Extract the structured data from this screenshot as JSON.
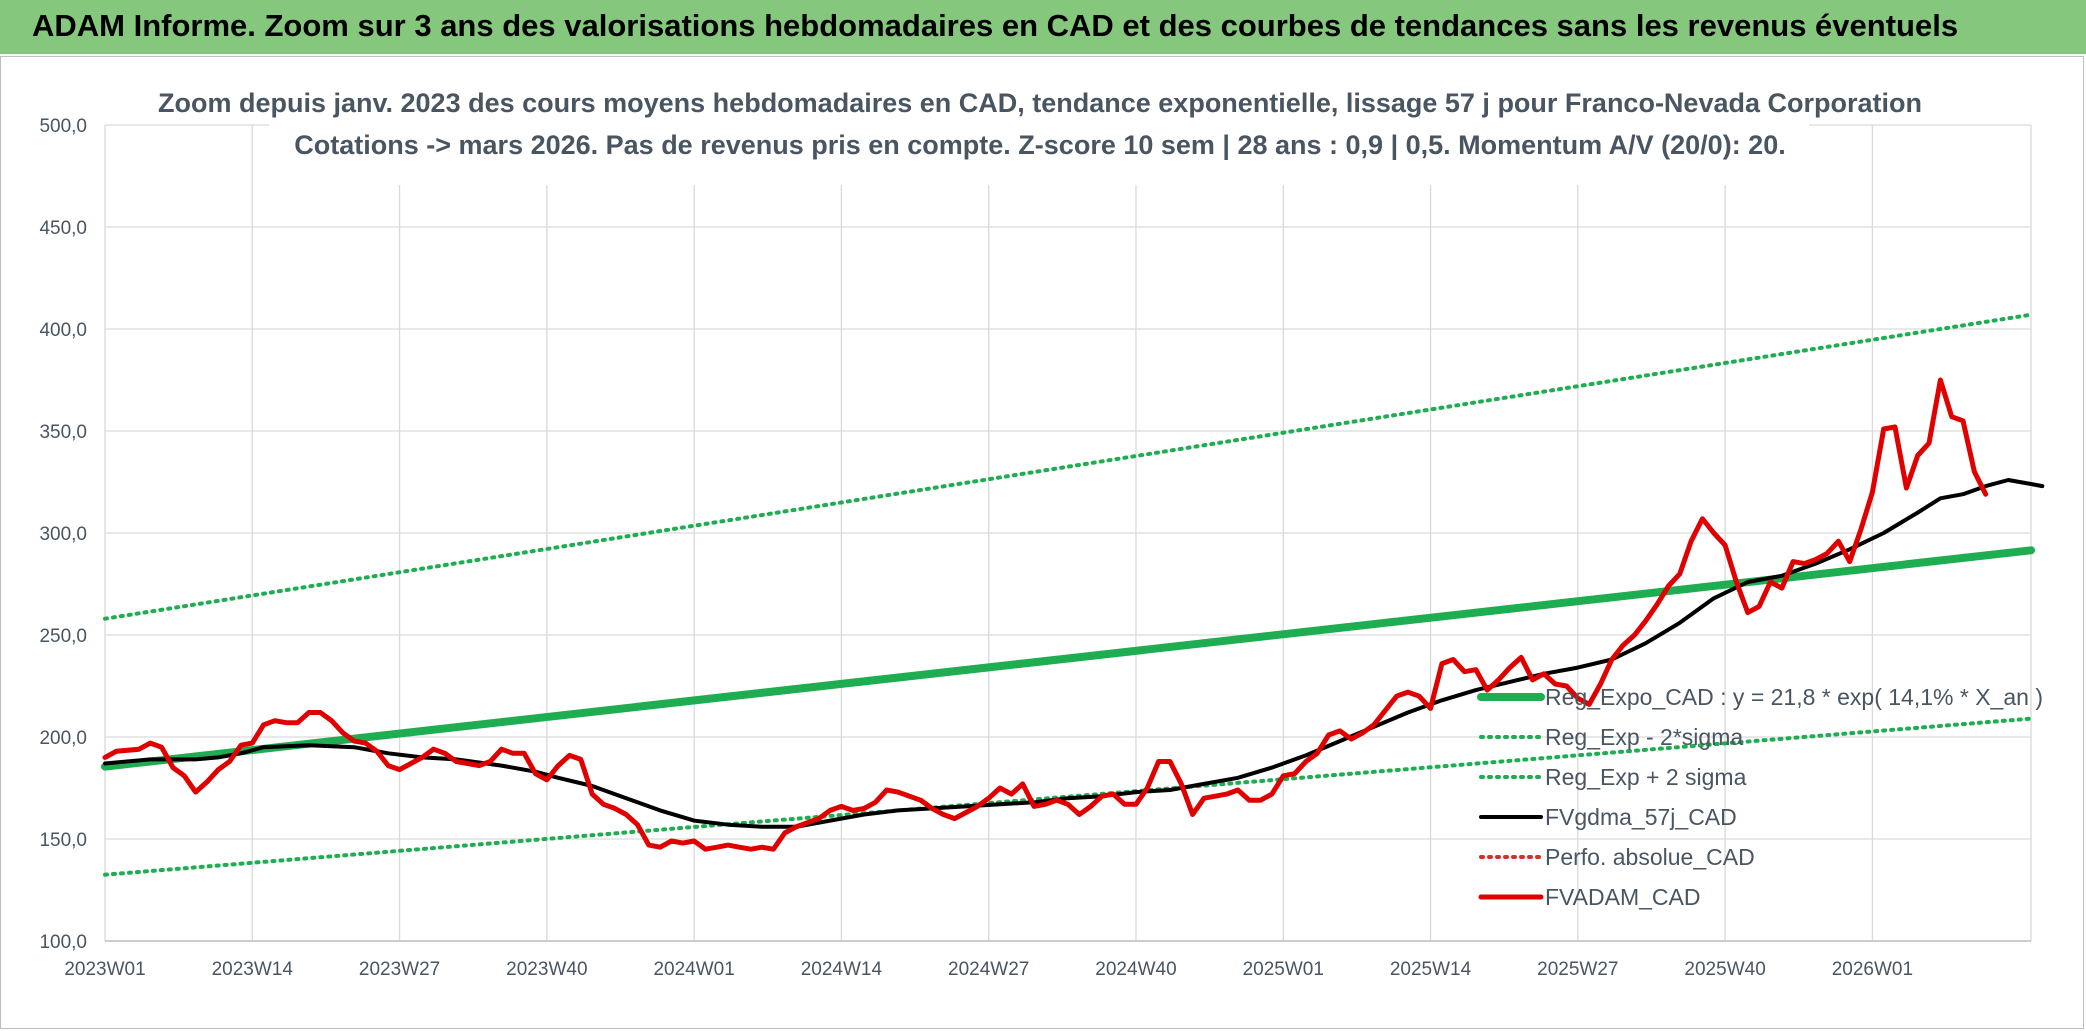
{
  "header": {
    "title": "ADAM Informe. Zoom sur 3 ans des valorisations hebdomadaires en CAD et des courbes de tendances sans les revenus éventuels"
  },
  "chart_data": {
    "type": "line",
    "title_lines": [
      "Zoom depuis janv. 2023 des cours moyens hebdomadaires en CAD, tendance exponentielle, lissage 57 j pour Franco-Nevada Corporation",
      "Cotations -> mars 2026. Pas de revenus pris en compte. Z-score 10 sem | 28 ans : 0,9 | 0,5. Momentum A/V (20/0): 20."
    ],
    "xlabel": "",
    "ylabel": "",
    "ylim": [
      100,
      500
    ],
    "y_ticks": [
      "100,0",
      "150,0",
      "200,0",
      "250,0",
      "300,0",
      "350,0",
      "400,0",
      "450,0",
      "500,0"
    ],
    "x_ticks": [
      {
        "week": 0,
        "label": "2023W01"
      },
      {
        "week": 13,
        "label": "2023W14"
      },
      {
        "week": 26,
        "label": "2023W27"
      },
      {
        "week": 39,
        "label": "2023W40"
      },
      {
        "week": 52,
        "label": "2024W01"
      },
      {
        "week": 65,
        "label": "2024W14"
      },
      {
        "week": 78,
        "label": "2024W27"
      },
      {
        "week": 91,
        "label": "2024W40"
      },
      {
        "week": 104,
        "label": "2025W01"
      },
      {
        "week": 117,
        "label": "2025W14"
      },
      {
        "week": 130,
        "label": "2025W27"
      },
      {
        "week": 143,
        "label": "2025W40"
      },
      {
        "week": 156,
        "label": "2026W01"
      }
    ],
    "week_range": [
      0,
      170
    ],
    "legend_position": "right",
    "grid": true,
    "series": [
      {
        "name": "Reg_Expo_CAD : y = 21,8 * exp( 14,1% *  X_an )",
        "color": "#1fad52",
        "style": "solid-thick",
        "points": [
          [
            0,
            185.5
          ],
          [
            170,
            291.5
          ]
        ]
      },
      {
        "name": "Reg_Exp - 2*sigma",
        "color": "#1fad52",
        "style": "dotted",
        "points": [
          [
            0,
            132.5
          ],
          [
            170,
            209
          ]
        ]
      },
      {
        "name": "Reg_Exp + 2 sigma",
        "color": "#1fad52",
        "style": "dotted",
        "points": [
          [
            0,
            258
          ],
          [
            170,
            407
          ]
        ]
      },
      {
        "name": "FVgdma_57j_CAD",
        "color": "#000000",
        "style": "solid",
        "points": [
          [
            0,
            187
          ],
          [
            4,
            189
          ],
          [
            8,
            189
          ],
          [
            10,
            190
          ],
          [
            12,
            192
          ],
          [
            14,
            195
          ],
          [
            18,
            196
          ],
          [
            22,
            195
          ],
          [
            25,
            192
          ],
          [
            28,
            190
          ],
          [
            31,
            189
          ],
          [
            35,
            186
          ],
          [
            38,
            183
          ],
          [
            40,
            180
          ],
          [
            43,
            176
          ],
          [
            46,
            170
          ],
          [
            49,
            164
          ],
          [
            52,
            159
          ],
          [
            55,
            157
          ],
          [
            58,
            156
          ],
          [
            61,
            156
          ],
          [
            64,
            159
          ],
          [
            67,
            162
          ],
          [
            70,
            164
          ],
          [
            73,
            165
          ],
          [
            76,
            166
          ],
          [
            79,
            167
          ],
          [
            82,
            168
          ],
          [
            85,
            170
          ],
          [
            88,
            171
          ],
          [
            91,
            173
          ],
          [
            94,
            174
          ],
          [
            97,
            177
          ],
          [
            100,
            180
          ],
          [
            103,
            185
          ],
          [
            106,
            191
          ],
          [
            109,
            198
          ],
          [
            112,
            205
          ],
          [
            115,
            212
          ],
          [
            118,
            218
          ],
          [
            121,
            223
          ],
          [
            124,
            227
          ],
          [
            127,
            231
          ],
          [
            130,
            234
          ],
          [
            133,
            238
          ],
          [
            136,
            246
          ],
          [
            139,
            256
          ],
          [
            142,
            268
          ],
          [
            145,
            276
          ],
          [
            148,
            279
          ],
          [
            151,
            285
          ],
          [
            154,
            292
          ],
          [
            157,
            300
          ],
          [
            160,
            310
          ],
          [
            162,
            317
          ],
          [
            164,
            319
          ],
          [
            166,
            323
          ],
          [
            168,
            326
          ],
          [
            170,
            324
          ],
          [
            171,
            323
          ]
        ]
      },
      {
        "name": "Perfo. absolue_CAD",
        "color": "#e02b2b",
        "style": "dotted",
        "points": []
      },
      {
        "name": "FVADAM_CAD",
        "color": "#e00000",
        "style": "solid-thick",
        "points": [
          [
            0,
            190
          ],
          [
            1,
            193
          ],
          [
            3,
            194
          ],
          [
            4,
            197
          ],
          [
            5,
            195
          ],
          [
            6,
            185
          ],
          [
            7,
            181
          ],
          [
            8,
            173
          ],
          [
            9,
            178
          ],
          [
            10,
            184
          ],
          [
            11,
            188
          ],
          [
            12,
            196
          ],
          [
            13,
            197
          ],
          [
            14,
            206
          ],
          [
            15,
            208
          ],
          [
            16,
            207
          ],
          [
            17,
            207
          ],
          [
            18,
            212
          ],
          [
            19,
            212
          ],
          [
            20,
            208
          ],
          [
            21,
            202
          ],
          [
            22,
            198
          ],
          [
            23,
            197
          ],
          [
            24,
            193
          ],
          [
            25,
            186
          ],
          [
            26,
            184
          ],
          [
            27,
            187
          ],
          [
            28,
            190
          ],
          [
            29,
            194
          ],
          [
            30,
            192
          ],
          [
            31,
            188
          ],
          [
            32,
            187
          ],
          [
            33,
            186
          ],
          [
            34,
            188
          ],
          [
            35,
            194
          ],
          [
            36,
            192
          ],
          [
            37,
            192
          ],
          [
            38,
            182
          ],
          [
            39,
            179
          ],
          [
            40,
            186
          ],
          [
            41,
            191
          ],
          [
            42,
            189
          ],
          [
            43,
            172
          ],
          [
            44,
            167
          ],
          [
            45,
            165
          ],
          [
            46,
            162
          ],
          [
            47,
            157
          ],
          [
            48,
            147
          ],
          [
            49,
            146
          ],
          [
            50,
            149
          ],
          [
            51,
            148
          ],
          [
            52,
            149
          ],
          [
            53,
            145
          ],
          [
            54,
            146
          ],
          [
            55,
            147
          ],
          [
            56,
            146
          ],
          [
            57,
            145
          ],
          [
            58,
            146
          ],
          [
            59,
            145
          ],
          [
            60,
            153
          ],
          [
            61,
            156
          ],
          [
            62,
            158
          ],
          [
            63,
            160
          ],
          [
            64,
            164
          ],
          [
            65,
            166
          ],
          [
            66,
            164
          ],
          [
            67,
            165
          ],
          [
            68,
            168
          ],
          [
            69,
            174
          ],
          [
            70,
            173
          ],
          [
            71,
            171
          ],
          [
            72,
            169
          ],
          [
            73,
            165
          ],
          [
            74,
            162
          ],
          [
            75,
            160
          ],
          [
            76,
            163
          ],
          [
            77,
            166
          ],
          [
            78,
            170
          ],
          [
            79,
            175
          ],
          [
            80,
            172
          ],
          [
            81,
            177
          ],
          [
            82,
            166
          ],
          [
            83,
            167
          ],
          [
            84,
            169
          ],
          [
            85,
            167
          ],
          [
            86,
            162
          ],
          [
            87,
            166
          ],
          [
            88,
            171
          ],
          [
            89,
            172
          ],
          [
            90,
            167
          ],
          [
            91,
            167
          ],
          [
            92,
            175
          ],
          [
            93,
            188
          ],
          [
            94,
            188
          ],
          [
            95,
            177
          ],
          [
            96,
            162
          ],
          [
            97,
            170
          ],
          [
            98,
            171
          ],
          [
            99,
            172
          ],
          [
            100,
            174
          ],
          [
            101,
            169
          ],
          [
            102,
            169
          ],
          [
            103,
            172
          ],
          [
            104,
            181
          ],
          [
            105,
            182
          ],
          [
            106,
            188
          ],
          [
            107,
            192
          ],
          [
            108,
            201
          ],
          [
            109,
            203
          ],
          [
            110,
            199
          ],
          [
            111,
            202
          ],
          [
            112,
            206
          ],
          [
            113,
            213
          ],
          [
            114,
            220
          ],
          [
            115,
            222
          ],
          [
            116,
            220
          ],
          [
            117,
            214
          ],
          [
            118,
            236
          ],
          [
            119,
            238
          ],
          [
            120,
            232
          ],
          [
            121,
            233
          ],
          [
            122,
            223
          ],
          [
            123,
            228
          ],
          [
            124,
            234
          ],
          [
            125,
            239
          ],
          [
            126,
            228
          ],
          [
            127,
            231
          ],
          [
            128,
            226
          ],
          [
            129,
            225
          ],
          [
            130,
            219
          ],
          [
            131,
            216
          ],
          [
            132,
            226
          ],
          [
            133,
            238
          ],
          [
            134,
            245
          ],
          [
            135,
            250
          ],
          [
            136,
            257
          ],
          [
            137,
            265
          ],
          [
            138,
            274
          ],
          [
            139,
            280
          ],
          [
            140,
            296
          ],
          [
            141,
            307
          ],
          [
            142,
            300
          ],
          [
            143,
            294
          ],
          [
            144,
            276
          ],
          [
            145,
            261
          ],
          [
            146,
            264
          ],
          [
            147,
            276
          ],
          [
            148,
            273
          ],
          [
            149,
            286
          ],
          [
            150,
            285
          ],
          [
            151,
            287
          ],
          [
            152,
            290
          ],
          [
            153,
            296
          ],
          [
            154,
            286
          ],
          [
            155,
            302
          ],
          [
            156,
            320
          ],
          [
            157,
            351
          ],
          [
            158,
            352
          ],
          [
            159,
            322
          ],
          [
            160,
            338
          ],
          [
            161,
            344
          ],
          [
            162,
            375
          ],
          [
            163,
            357
          ],
          [
            164,
            355
          ],
          [
            165,
            330
          ],
          [
            166,
            319
          ]
        ]
      }
    ]
  }
}
